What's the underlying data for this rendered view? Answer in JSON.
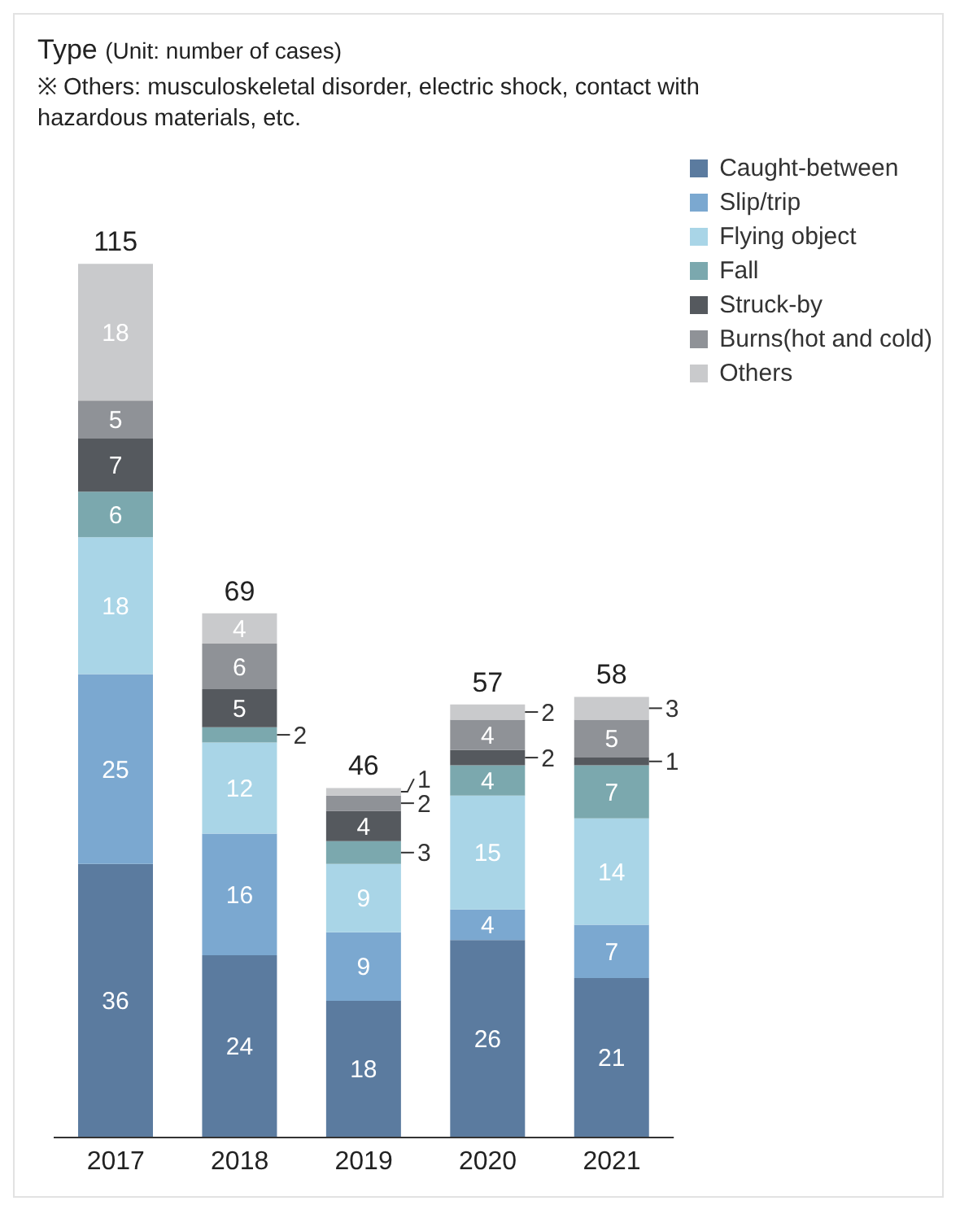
{
  "chart_data": {
    "type": "bar",
    "title": "Type",
    "subtitle": "(Unit: number of cases)",
    "annotations": [
      "※ Others: musculoskeletal disorder, electric shock, contact with hazardous materials, etc."
    ],
    "categories": [
      "2017",
      "2018",
      "2019",
      "2020",
      "2021"
    ],
    "stacked": true,
    "data_labels": true,
    "legend": "top right",
    "totals": [
      "115",
      "69",
      "46",
      "57",
      "58"
    ],
    "series": [
      {
        "name": "Caught-between",
        "color": "#5b7b9f",
        "values": [
          36,
          24,
          18,
          26,
          21
        ]
      },
      {
        "name": "Slip/trip",
        "color": "#7ba8d0",
        "values": [
          25,
          16,
          9,
          4,
          7
        ]
      },
      {
        "name": "Flying object",
        "color": "#a9d5e7",
        "values": [
          18,
          12,
          9,
          15,
          14
        ]
      },
      {
        "name": "Fall",
        "color": "#7ba8ae",
        "values": [
          6,
          2,
          3,
          4,
          7
        ]
      },
      {
        "name": "Struck-by",
        "color": "#55595e",
        "values": [
          7,
          5,
          4,
          2,
          1
        ]
      },
      {
        "name": "Burns(hot and cold)",
        "color": "#8f9297",
        "values": [
          5,
          6,
          2,
          4,
          5
        ]
      },
      {
        "name": "Others",
        "color": "#c9cacc",
        "values": [
          18,
          4,
          1,
          2,
          3
        ]
      }
    ]
  }
}
